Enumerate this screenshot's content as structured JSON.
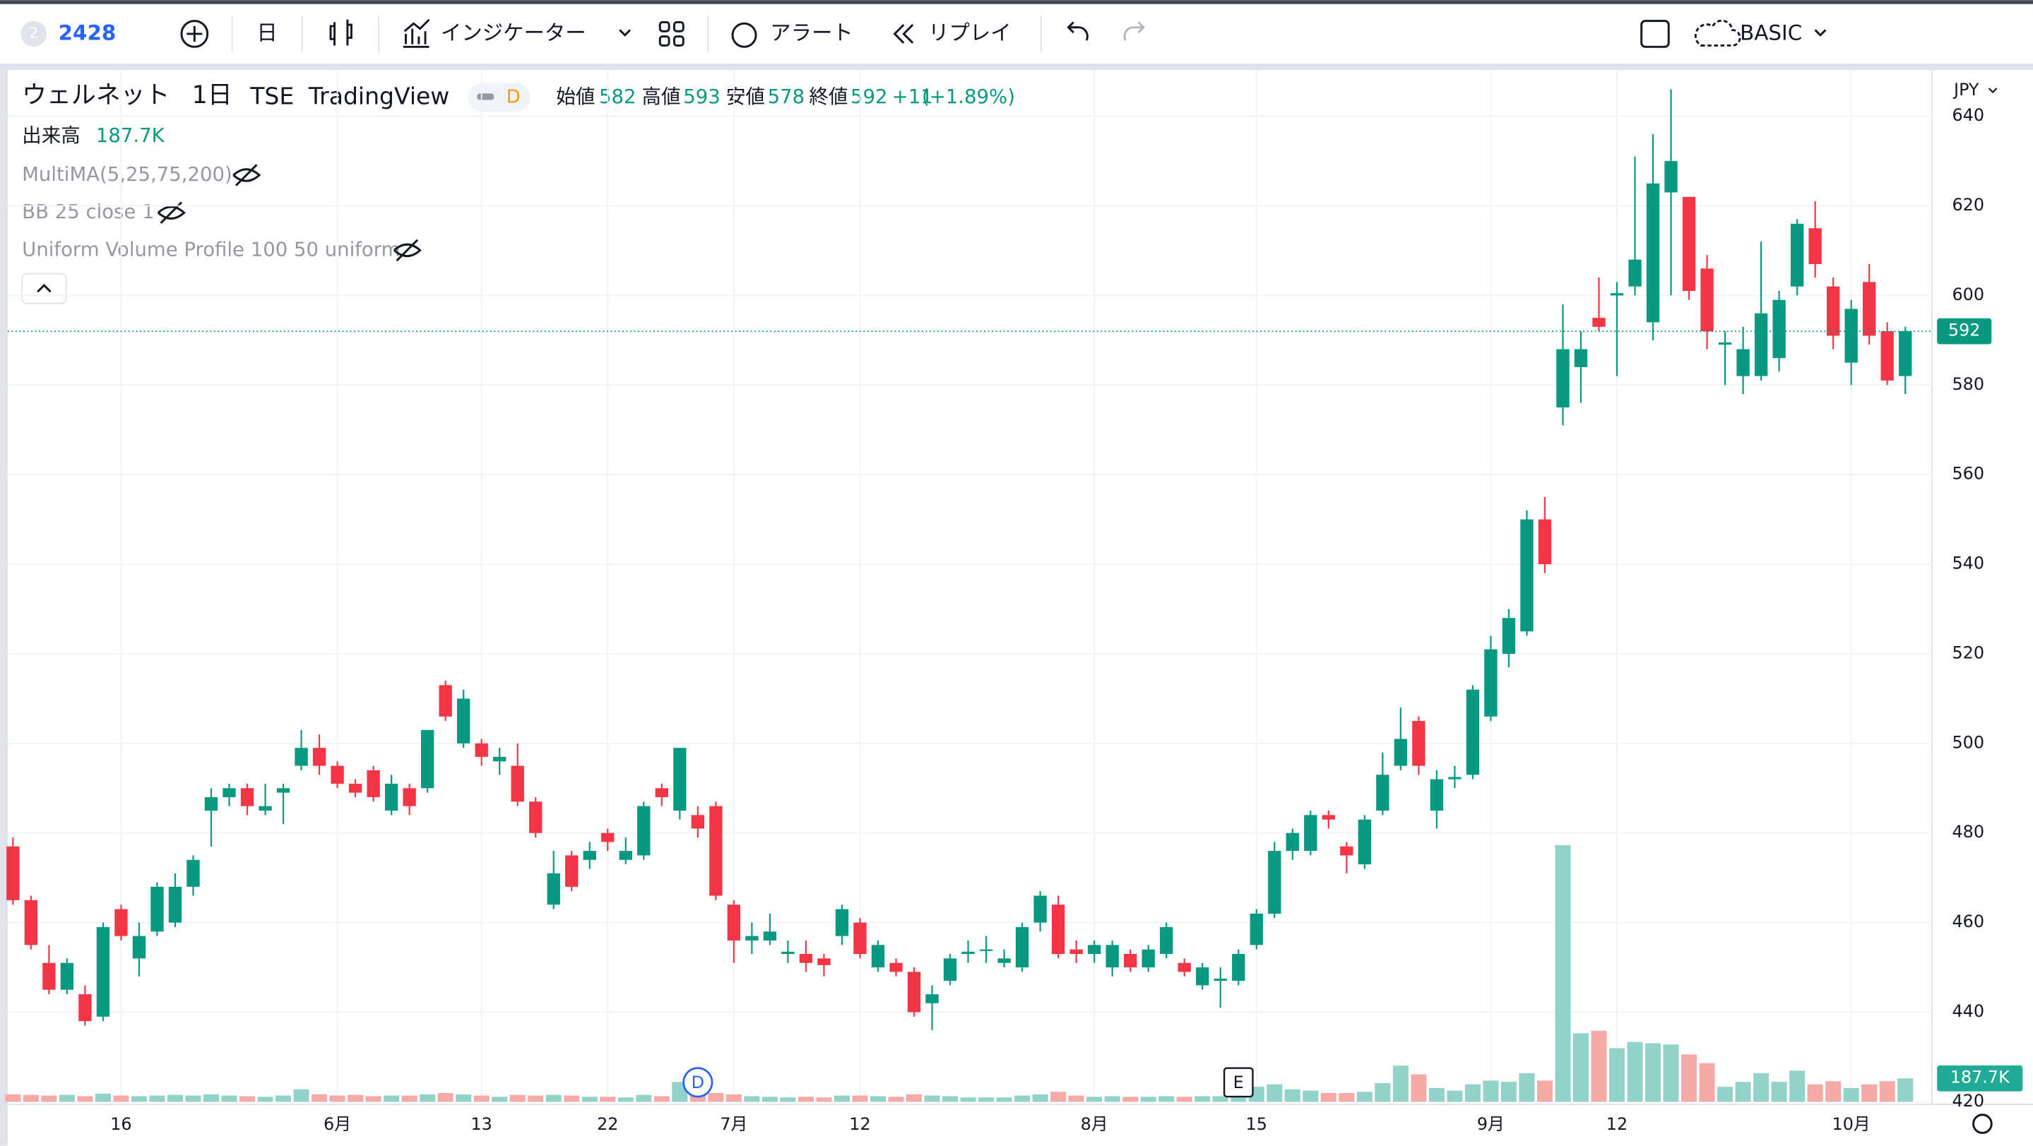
{
  "toolbar": {
    "badge": "2",
    "symbol": "2428",
    "interval": "日",
    "indicators": "インジケーター",
    "alert": "アラート",
    "replay": "リプレイ",
    "layout": "BASIC"
  },
  "legend": {
    "name": "ウェルネット",
    "interval": "1日",
    "exchange": "TSE",
    "source": "TradingView",
    "status": "D",
    "open_label": "始値",
    "high_label": "高値",
    "low_label": "安値",
    "close_label": "終値",
    "change": "+11",
    "change_percent": "(+1.89%)"
  },
  "indicators": {
    "volume": "出来高",
    "list": [
      "MultiMA(5,25,75,200)",
      "BB 25 close 1",
      "Uniform Volume Profile 100 50 uniform"
    ]
  },
  "currency": "JPY",
  "markers": [
    {
      "label": "D",
      "index": 38
    },
    {
      "label": "E",
      "index": 68
    }
  ],
  "chart_data": {
    "type": "candlestick",
    "ylim": [
      420,
      650
    ],
    "yticks": [
      420,
      440,
      460,
      480,
      500,
      520,
      540,
      560,
      580,
      600,
      620,
      640
    ],
    "xticks": [
      {
        "value": 6,
        "label": "16"
      },
      {
        "value": 18,
        "label": "6月"
      },
      {
        "value": 26,
        "label": "13"
      },
      {
        "value": 33,
        "label": "22"
      },
      {
        "value": 40,
        "label": "7月"
      },
      {
        "value": 47,
        "label": "12"
      },
      {
        "value": 60,
        "label": "8月"
      },
      {
        "value": 69,
        "label": "15"
      },
      {
        "value": 82,
        "label": "9月"
      },
      {
        "value": 89,
        "label": "12"
      },
      {
        "value": 102,
        "label": "10月"
      }
    ],
    "grid": true,
    "up_color": "#089981",
    "down_color": "#f23645",
    "volume_up_color": "#92d2c9",
    "volume_down_color": "#f7a9a7",
    "open": [
      477,
      465,
      451,
      445,
      444,
      439,
      463,
      452,
      458,
      460,
      468,
      485,
      488,
      490,
      485,
      489,
      495,
      499,
      495,
      491,
      494,
      485,
      490,
      490,
      513,
      500,
      500,
      496,
      495,
      487,
      464,
      475,
      474,
      480,
      474,
      475,
      490,
      485,
      484,
      486,
      464,
      456,
      456,
      453,
      453,
      452,
      457,
      460,
      450,
      451,
      449,
      442,
      447,
      453,
      454,
      451,
      450,
      460,
      464,
      454,
      453,
      450,
      453,
      450,
      453,
      451,
      446,
      447,
      447,
      455,
      462,
      476,
      476,
      484,
      477,
      473,
      485,
      495,
      505,
      485,
      492,
      493,
      506,
      520,
      525,
      550,
      575,
      584,
      595,
      600,
      602,
      594,
      623,
      622,
      606,
      589,
      582,
      582,
      586,
      602,
      615,
      602,
      585,
      603,
      592,
      582
    ],
    "high": [
      479,
      466,
      455,
      452,
      446,
      460,
      464,
      460,
      469,
      471,
      475,
      490,
      491,
      491,
      491,
      491,
      503,
      502,
      496,
      492,
      495,
      493,
      491,
      503,
      514,
      512,
      501,
      499,
      500,
      488,
      476,
      476,
      478,
      481,
      479,
      487,
      491,
      499,
      486,
      487,
      465,
      460,
      462,
      456,
      456,
      453,
      464,
      461,
      456,
      452,
      450,
      446,
      453,
      456,
      457,
      454,
      460,
      467,
      466,
      456,
      456,
      456,
      454,
      455,
      460,
      452,
      451,
      450,
      454,
      463,
      478,
      481,
      485,
      485,
      478,
      484,
      498,
      508,
      506,
      494,
      495,
      513,
      524,
      530,
      552,
      555,
      598,
      592,
      604,
      603,
      631,
      636,
      646,
      622,
      609,
      592,
      593,
      612,
      601,
      617,
      621,
      604,
      599,
      607,
      594,
      593
    ],
    "low": [
      464,
      454,
      444,
      444,
      437,
      438,
      456,
      448,
      457,
      459,
      466,
      477,
      486,
      484,
      484,
      482,
      494,
      493,
      490,
      488,
      487,
      484,
      484,
      489,
      505,
      499,
      495,
      493,
      486,
      479,
      463,
      467,
      472,
      476,
      473,
      474,
      486,
      483,
      479,
      465,
      451,
      453,
      455,
      451,
      449,
      448,
      455,
      452,
      449,
      448,
      439,
      436,
      446,
      451,
      451,
      450,
      449,
      458,
      452,
      451,
      451,
      448,
      449,
      449,
      452,
      448,
      445,
      441,
      446,
      454,
      461,
      474,
      475,
      481,
      471,
      472,
      484,
      494,
      493,
      481,
      490,
      492,
      505,
      517,
      524,
      538,
      571,
      576,
      592,
      582,
      600,
      590,
      600,
      599,
      588,
      580,
      578,
      581,
      583,
      600,
      604,
      588,
      580,
      589,
      580,
      578
    ],
    "close": [
      465,
      455,
      445,
      451,
      438,
      459,
      457,
      457,
      468,
      468,
      474,
      488,
      490,
      486,
      486,
      490,
      499,
      495,
      491,
      489,
      488,
      491,
      486,
      503,
      506,
      510,
      497,
      497,
      487,
      480,
      471,
      468,
      476,
      478,
      476,
      486,
      488,
      499,
      481,
      466,
      456,
      457,
      458,
      453.5,
      451,
      450.5,
      463,
      453,
      455,
      449,
      440,
      444,
      452,
      453.5,
      454,
      452,
      459,
      466,
      453,
      453,
      455,
      455,
      450,
      454,
      459,
      449,
      450,
      447.5,
      453,
      462,
      476,
      480,
      484,
      483,
      475,
      483,
      493,
      501,
      495,
      492,
      492.5,
      512,
      521,
      528,
      550,
      540,
      588,
      588,
      593,
      600.5,
      608,
      625,
      630,
      601,
      592,
      589.5,
      588,
      596,
      599,
      616,
      607,
      591,
      597,
      591,
      581,
      592
    ],
    "volume": [
      60000,
      55000,
      50000,
      55000,
      45000,
      65000,
      50000,
      45000,
      50000,
      55000,
      50000,
      60000,
      50000,
      45000,
      40000,
      50000,
      100000,
      60000,
      50000,
      55000,
      45000,
      50000,
      50000,
      60000,
      70000,
      60000,
      50000,
      40000,
      55000,
      50000,
      55000,
      50000,
      40000,
      40000,
      35000,
      55000,
      45000,
      160000,
      50000,
      70000,
      60000,
      45000,
      40000,
      35000,
      40000,
      35000,
      50000,
      50000,
      45000,
      40000,
      60000,
      50000,
      45000,
      35000,
      35000,
      35000,
      50000,
      60000,
      80000,
      50000,
      40000,
      45000,
      40000,
      40000,
      45000,
      40000,
      45000,
      45000,
      60000,
      120000,
      140000,
      100000,
      90000,
      70000,
      70000,
      80000,
      150000,
      290000,
      220000,
      110000,
      90000,
      140000,
      170000,
      160000,
      230000,
      170000,
      2060000,
      550000,
      570000,
      430000,
      480000,
      470000,
      460000,
      380000,
      310000,
      120000,
      160000,
      230000,
      160000,
      250000,
      140000,
      165000,
      110000,
      140000,
      165000,
      187700
    ],
    "volume_label": "187.7K"
  }
}
